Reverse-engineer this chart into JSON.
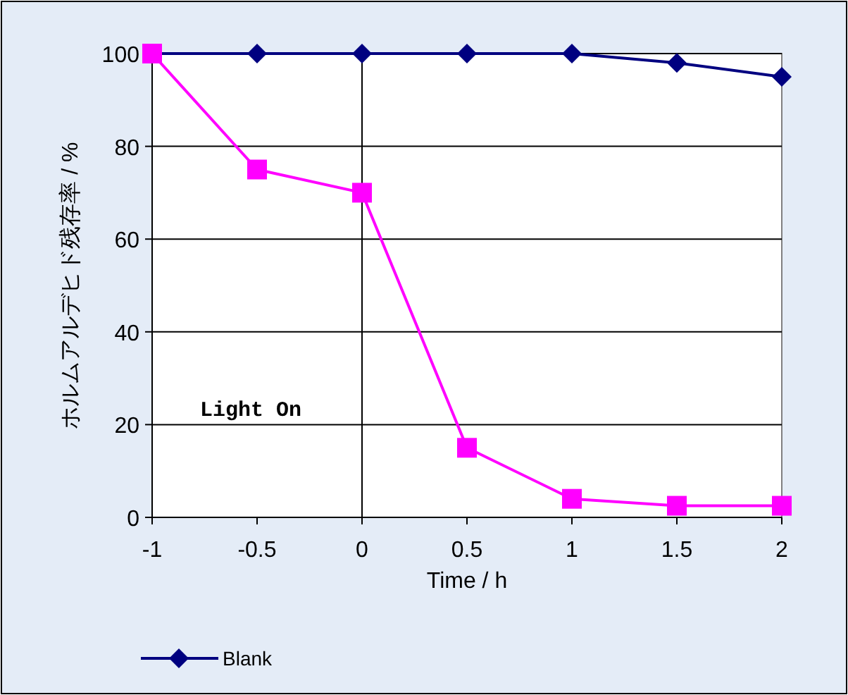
{
  "chart_data": {
    "type": "line",
    "ylabel": "ホルムアルデヒド残存率 / %",
    "xlabel": "Time / h",
    "x": [
      -1,
      -0.5,
      0,
      0.5,
      1,
      1.5,
      2
    ],
    "xlim": [
      -1,
      2
    ],
    "xticks": [
      -1,
      -0.5,
      0,
      0.5,
      1,
      1.5,
      2
    ],
    "ylim": [
      0,
      100
    ],
    "yticks": [
      0,
      20,
      40,
      60,
      80,
      100
    ],
    "grid": "y",
    "legend": "bottom",
    "ref_lines": [
      {
        "axis": "x",
        "value": 0,
        "label": "Light On",
        "color": "#000000"
      }
    ],
    "series": [
      {
        "name": "Blank",
        "color": "#000080",
        "marker": "diamond",
        "values": [
          100,
          100,
          100,
          100,
          100,
          98,
          95
        ]
      },
      {
        "color": "#ff00ff",
        "marker": "square",
        "values": [
          100,
          75,
          70,
          15,
          4,
          2.5,
          2.5
        ]
      }
    ]
  }
}
